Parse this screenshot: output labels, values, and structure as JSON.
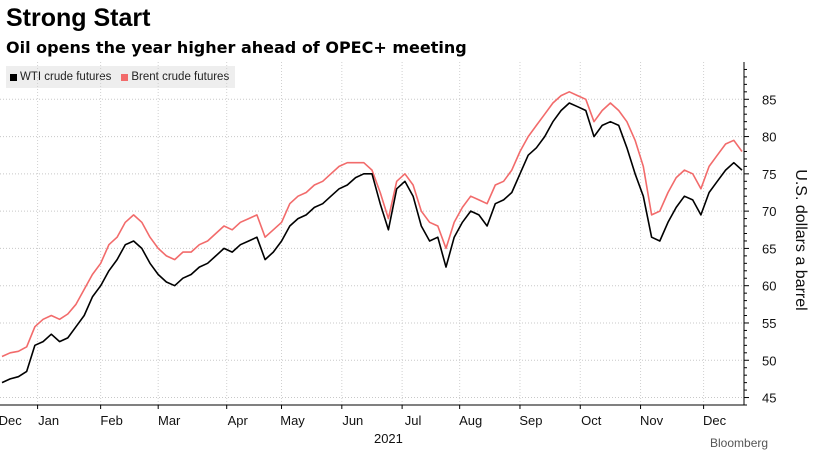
{
  "title": "Strong Start",
  "subtitle": "Oil opens the year higher ahead of OPEC+ meeting",
  "legend": [
    {
      "label": "WTI crude futures",
      "color": "#000000"
    },
    {
      "label": "Brent crude futures",
      "color": "#f26b6b"
    }
  ],
  "footer": "Bloomberg",
  "chart_data": {
    "type": "line",
    "title": "Strong Start",
    "subtitle": "Oil opens the year higher ahead of OPEC+ meeting",
    "ylabel": "U.S. dollars a barrel",
    "xlabel": "2021",
    "ylim": [
      44,
      90
    ],
    "yticks": [
      45,
      50,
      55,
      60,
      65,
      70,
      75,
      80,
      85
    ],
    "y_axis_side": "right",
    "grid": true,
    "legend_position": "top-left",
    "x_index_range": [
      0,
      270
    ],
    "x_ticks": [
      {
        "label": "Dec",
        "x": 3
      },
      {
        "label": "Jan",
        "x": 17
      },
      {
        "label": "Feb",
        "x": 40
      },
      {
        "label": "Mar",
        "x": 61
      },
      {
        "label": "Apr",
        "x": 86
      },
      {
        "label": "May",
        "x": 106
      },
      {
        "label": "Jun",
        "x": 128
      },
      {
        "label": "Jul",
        "x": 150
      },
      {
        "label": "Aug",
        "x": 171
      },
      {
        "label": "Sep",
        "x": 193
      },
      {
        "label": "Oct",
        "x": 215
      },
      {
        "label": "Nov",
        "x": 237
      },
      {
        "label": "Dec",
        "x": 260
      }
    ],
    "x_year_label": {
      "label": "2021",
      "x": 141
    },
    "series": [
      {
        "name": "WTI crude futures",
        "color": "#000000",
        "x": [
          0,
          3,
          6,
          9,
          12,
          15,
          18,
          21,
          24,
          27,
          30,
          33,
          36,
          39,
          42,
          45,
          48,
          51,
          54,
          57,
          60,
          63,
          66,
          69,
          72,
          75,
          78,
          81,
          84,
          87,
          90,
          93,
          96,
          99,
          102,
          105,
          108,
          111,
          114,
          117,
          120,
          123,
          126,
          129,
          132,
          135,
          138,
          141,
          144,
          147,
          150,
          153,
          156,
          159,
          162,
          165,
          168,
          171,
          174,
          177,
          180,
          183,
          186,
          189,
          192,
          195,
          198,
          201,
          204,
          207,
          210,
          213,
          216,
          219,
          222,
          225,
          228,
          231,
          234,
          237,
          240,
          243,
          246,
          249,
          252,
          255,
          258,
          261,
          264,
          267,
          270
        ],
        "values": [
          47.0,
          47.5,
          47.8,
          48.5,
          52.0,
          52.5,
          53.5,
          52.5,
          53.0,
          54.5,
          56.0,
          58.5,
          60.0,
          62.0,
          63.5,
          65.5,
          66.0,
          65.0,
          63.0,
          61.5,
          60.5,
          60.0,
          61.0,
          61.5,
          62.5,
          63.0,
          64.0,
          65.0,
          64.5,
          65.5,
          66.0,
          66.5,
          63.5,
          64.5,
          66.0,
          68.0,
          69.0,
          69.5,
          70.5,
          71.0,
          72.0,
          73.0,
          73.5,
          74.5,
          75.0,
          75.0,
          71.0,
          67.5,
          73.0,
          74.0,
          72.0,
          68.0,
          66.0,
          66.5,
          62.5,
          66.5,
          68.5,
          70.0,
          69.5,
          68.0,
          71.0,
          71.5,
          72.5,
          75.0,
          77.5,
          78.5,
          80.0,
          82.0,
          83.5,
          84.5,
          84.0,
          83.5,
          80.0,
          81.5,
          82.0,
          81.5,
          78.5,
          75.0,
          72.0,
          66.5,
          66.0,
          68.5,
          70.5,
          72.0,
          71.5,
          69.5,
          72.5,
          74.0,
          75.5,
          76.5,
          75.5
        ]
      },
      {
        "name": "Brent crude futures",
        "color": "#f26b6b",
        "x": [
          0,
          3,
          6,
          9,
          12,
          15,
          18,
          21,
          24,
          27,
          30,
          33,
          36,
          39,
          42,
          45,
          48,
          51,
          54,
          57,
          60,
          63,
          66,
          69,
          72,
          75,
          78,
          81,
          84,
          87,
          90,
          93,
          96,
          99,
          102,
          105,
          108,
          111,
          114,
          117,
          120,
          123,
          126,
          129,
          132,
          135,
          138,
          141,
          144,
          147,
          150,
          153,
          156,
          159,
          162,
          165,
          168,
          171,
          174,
          177,
          180,
          183,
          186,
          189,
          192,
          195,
          198,
          201,
          204,
          207,
          210,
          213,
          216,
          219,
          222,
          225,
          228,
          231,
          234,
          237,
          240,
          243,
          246,
          249,
          252,
          255,
          258,
          261,
          264,
          267,
          270
        ],
        "values": [
          50.5,
          51.0,
          51.2,
          51.8,
          54.5,
          55.5,
          56.0,
          55.5,
          56.2,
          57.5,
          59.5,
          61.5,
          63.0,
          65.5,
          66.5,
          68.5,
          69.5,
          68.5,
          66.5,
          65.0,
          64.0,
          63.5,
          64.5,
          64.5,
          65.5,
          66.0,
          67.0,
          68.0,
          67.5,
          68.5,
          69.0,
          69.5,
          66.5,
          67.5,
          68.5,
          71.0,
          72.0,
          72.5,
          73.5,
          74.0,
          75.0,
          76.0,
          76.5,
          76.5,
          76.5,
          75.5,
          72.5,
          69.0,
          74.0,
          75.0,
          73.5,
          70.0,
          68.5,
          68.0,
          65.0,
          68.5,
          70.5,
          72.0,
          71.5,
          71.0,
          73.5,
          74.0,
          75.5,
          78.0,
          80.0,
          81.5,
          83.0,
          84.5,
          85.5,
          86.0,
          85.5,
          85.0,
          82.0,
          83.5,
          84.5,
          83.5,
          82.0,
          79.5,
          76.0,
          69.5,
          70.0,
          72.5,
          74.5,
          75.5,
          75.0,
          73.0,
          76.0,
          77.5,
          79.0,
          79.5,
          78.0
        ]
      }
    ]
  }
}
